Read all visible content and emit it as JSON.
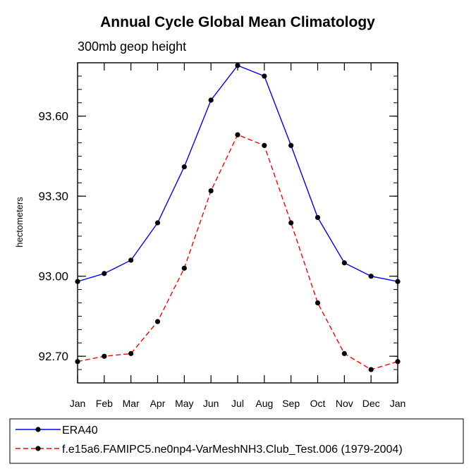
{
  "chart_data": {
    "type": "line",
    "title": "Annual Cycle Global Mean Climatology",
    "subtitle": "300mb geop height",
    "ylabel": "hectometers",
    "xlabel": "",
    "categories": [
      "Jan",
      "Feb",
      "Mar",
      "Apr",
      "May",
      "Jun",
      "Jul",
      "Aug",
      "Sep",
      "Oct",
      "Nov",
      "Dec",
      "Jan"
    ],
    "ylim": [
      92.6,
      93.8
    ],
    "yticks": [
      92.7,
      93.0,
      93.3,
      93.6
    ],
    "ytick_labels": [
      "92.70",
      "93.00",
      "93.30",
      "93.60"
    ],
    "grid": false,
    "legend_position": "bottom",
    "series": [
      {
        "name": "ERA40",
        "color": "#0000ff",
        "dash": "solid",
        "marker": "circle",
        "values": [
          92.98,
          93.01,
          93.06,
          93.2,
          93.41,
          93.66,
          93.79,
          93.75,
          93.49,
          93.22,
          93.05,
          93.0,
          92.98
        ]
      },
      {
        "name": "f.e15a6.FAMIPC5.ne0np4-VarMeshNH3.Club_Test.006 (1979-2004)",
        "color": "#ff0000",
        "dash": "dashed",
        "marker": "circle",
        "values": [
          92.68,
          92.7,
          92.71,
          92.83,
          93.03,
          93.32,
          93.53,
          93.49,
          93.2,
          92.9,
          92.71,
          92.65,
          92.68
        ]
      }
    ]
  }
}
